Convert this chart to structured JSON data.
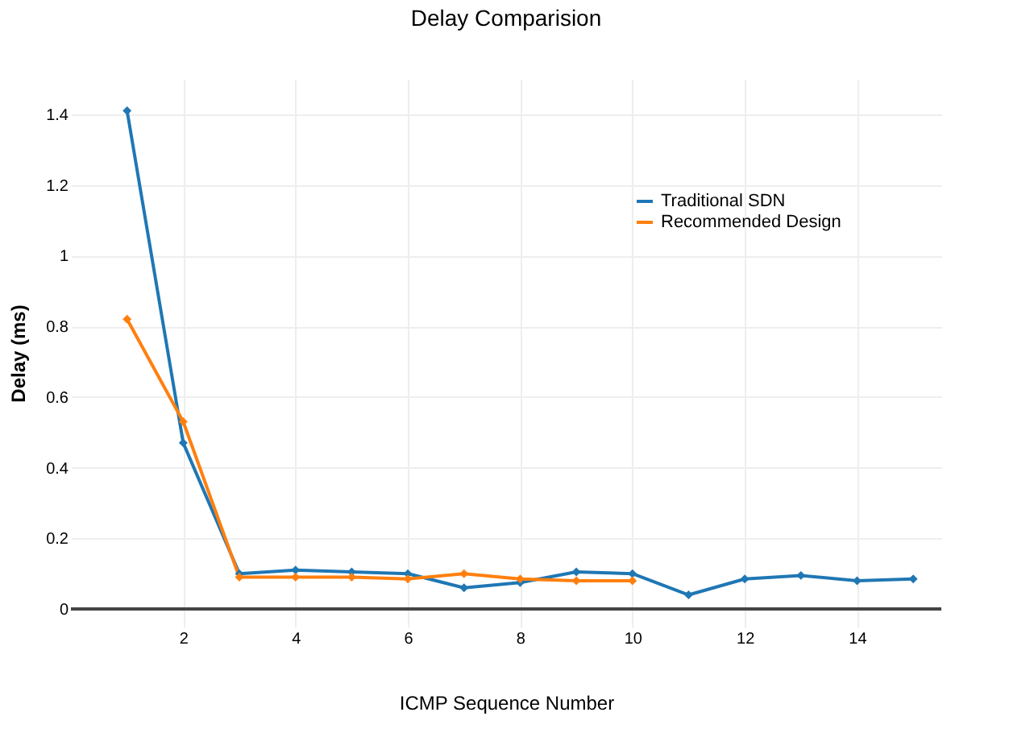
{
  "chart_data": {
    "type": "line",
    "title": "Delay Comparision",
    "xlabel": "ICMP Sequence Number",
    "ylabel": "Delay (ms)",
    "x": [
      1,
      2,
      3,
      4,
      5,
      6,
      7,
      8,
      9,
      10,
      11,
      12,
      13,
      14,
      15
    ],
    "series": [
      {
        "name": "Traditional SDN",
        "color": "#1f77b4",
        "values": [
          1.41,
          0.47,
          0.1,
          0.11,
          0.105,
          0.1,
          0.06,
          0.075,
          0.105,
          0.1,
          0.04,
          0.085,
          0.095,
          0.08,
          0.085
        ]
      },
      {
        "name": "Recommended Design",
        "color": "#ff7f0e",
        "values": [
          0.82,
          0.53,
          0.09,
          0.09,
          0.09,
          0.085,
          0.1,
          0.085,
          0.08,
          0.08,
          null,
          null,
          null,
          null,
          null
        ]
      }
    ],
    "xlim": [
      0,
      15.5
    ],
    "xticks": [
      2,
      4,
      6,
      8,
      10,
      12,
      14
    ],
    "ylim": [
      -0.05,
      1.5
    ],
    "yticks": [
      0,
      0.2,
      0.4,
      0.6,
      0.8,
      1,
      1.2,
      1.4
    ],
    "grid": true,
    "legend": "top right",
    "marker": "diamond",
    "line_style": "solid"
  }
}
